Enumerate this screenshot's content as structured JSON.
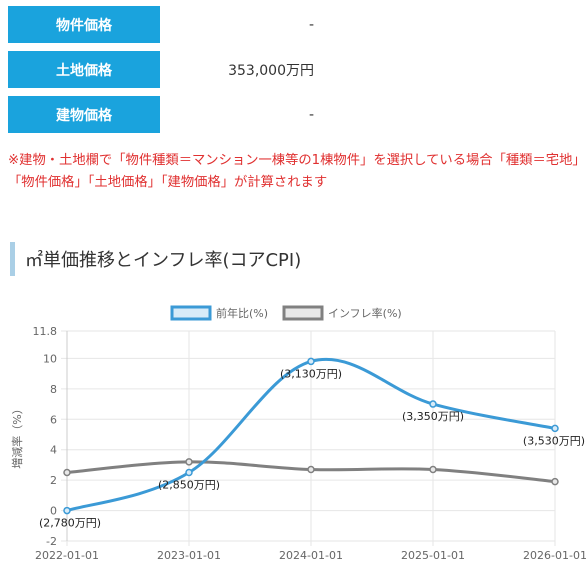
{
  "price_table": {
    "rows": [
      {
        "label": "物件価格",
        "value": "-"
      },
      {
        "label": "土地価格",
        "value": "353,000万円"
      },
      {
        "label": "建物価格",
        "value": "-"
      }
    ]
  },
  "note": "※建物・土地欄で「物件種類＝マンション一棟等の1棟物件」を選択している場合「種類＝宅地」「物件価格」「土地価格」「建物価格」が計算されます",
  "section_title": "㎡単価推移とインフレ率(コアCPI)",
  "chart_data": {
    "type": "line",
    "x": [
      "2022-01-01",
      "2023-01-01",
      "2024-01-01",
      "2025-01-01",
      "2026-01-01"
    ],
    "ylabel": "増減率（%）",
    "ylim": [
      -2,
      11.8
    ],
    "yticks": [
      "11.8",
      "10",
      "8",
      "6",
      "4",
      "2",
      "0",
      "-2"
    ],
    "grid": true,
    "legend_position": "top-center",
    "series": [
      {
        "name": "前年比(%)",
        "color": "#3b9ad6",
        "fill": "#d7ebf8",
        "values": [
          0,
          2.5,
          9.8,
          7.0,
          5.4
        ],
        "labels": [
          "(2,780万円)",
          "(2,850万円)",
          "(3,130万円)",
          "(3,350万円)",
          "(3,530万円)"
        ]
      },
      {
        "name": "インフレ率(%)",
        "color": "#808080",
        "fill": "#e8e8e8",
        "values": [
          2.5,
          3.2,
          2.7,
          2.7,
          1.9
        ]
      }
    ]
  }
}
